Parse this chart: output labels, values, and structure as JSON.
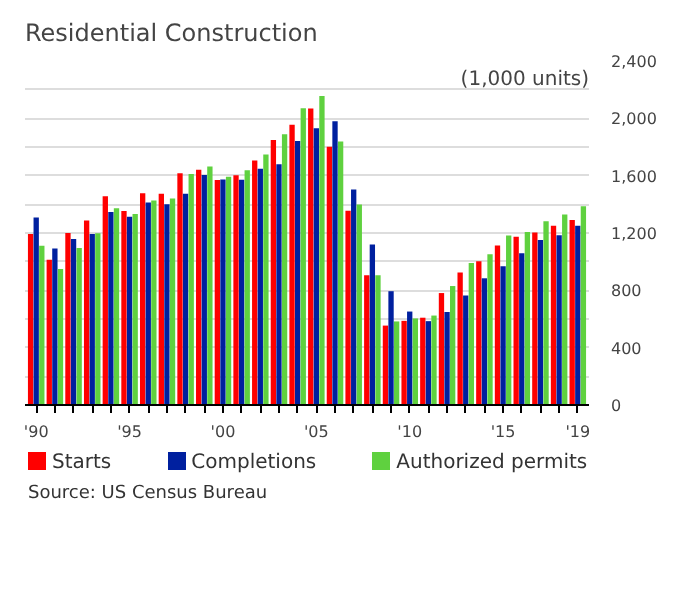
{
  "chart_data": {
    "type": "bar",
    "title": "Residential Construction",
    "subtitle": "(1,000 units)",
    "categories": [
      "'90",
      null,
      null,
      null,
      null,
      "'95",
      null,
      null,
      null,
      null,
      "'00",
      null,
      null,
      null,
      null,
      "'05",
      null,
      null,
      null,
      null,
      "'10",
      null,
      null,
      null,
      null,
      "'15",
      null,
      null,
      null,
      "'19"
    ],
    "series": [
      {
        "name": "Starts",
        "color": "#ff0000",
        "values": [
          1193,
          1014,
          1200,
          1288,
          1457,
          1354,
          1477,
          1474,
          1617,
          1641,
          1569,
          1603,
          1705,
          1848,
          1956,
          2068,
          1801,
          1355,
          906,
          554,
          587,
          609,
          781,
          925,
          1003,
          1112,
          1174,
          1203,
          1250,
          1290
        ]
      },
      {
        "name": "Completions",
        "color": "#00209f",
        "values": [
          1308,
          1091,
          1158,
          1193,
          1347,
          1313,
          1413,
          1400,
          1474,
          1605,
          1574,
          1571,
          1648,
          1679,
          1842,
          1931,
          1979,
          1503,
          1120,
          794,
          652,
          585,
          649,
          764,
          884,
          968,
          1059,
          1152,
          1185,
          1251
        ]
      },
      {
        "name": "Authorized permits",
        "color": "#5fd13f",
        "values": [
          1111,
          949,
          1095,
          1199,
          1372,
          1333,
          1426,
          1441,
          1612,
          1664,
          1592,
          1637,
          1748,
          1889,
          2070,
          2155,
          1839,
          1398,
          905,
          583,
          604,
          624,
          830,
          991,
          1052,
          1183,
          1207,
          1282,
          1329,
          1386
        ]
      }
    ],
    "ylim": [
      0,
      2400
    ],
    "yticks": [
      0,
      {
        "value": 200,
        "label": null
      },
      400,
      {
        "value": 600,
        "label": null
      },
      800,
      {
        "value": 1000,
        "label": null
      },
      {
        "value": 1200,
        "label": "1,200"
      },
      {
        "value": 1400,
        "label": null
      },
      {
        "value": 1600,
        "label": "1,600"
      },
      {
        "value": 1800,
        "label": null
      },
      {
        "value": 2000,
        "label": "2,000"
      },
      {
        "value": 2200,
        "label": null
      },
      {
        "value": 2400,
        "label": "2,400"
      }
    ],
    "grid": "y",
    "legend": "bottom",
    "annotations": [
      "Source: US Census Bureau"
    ]
  }
}
